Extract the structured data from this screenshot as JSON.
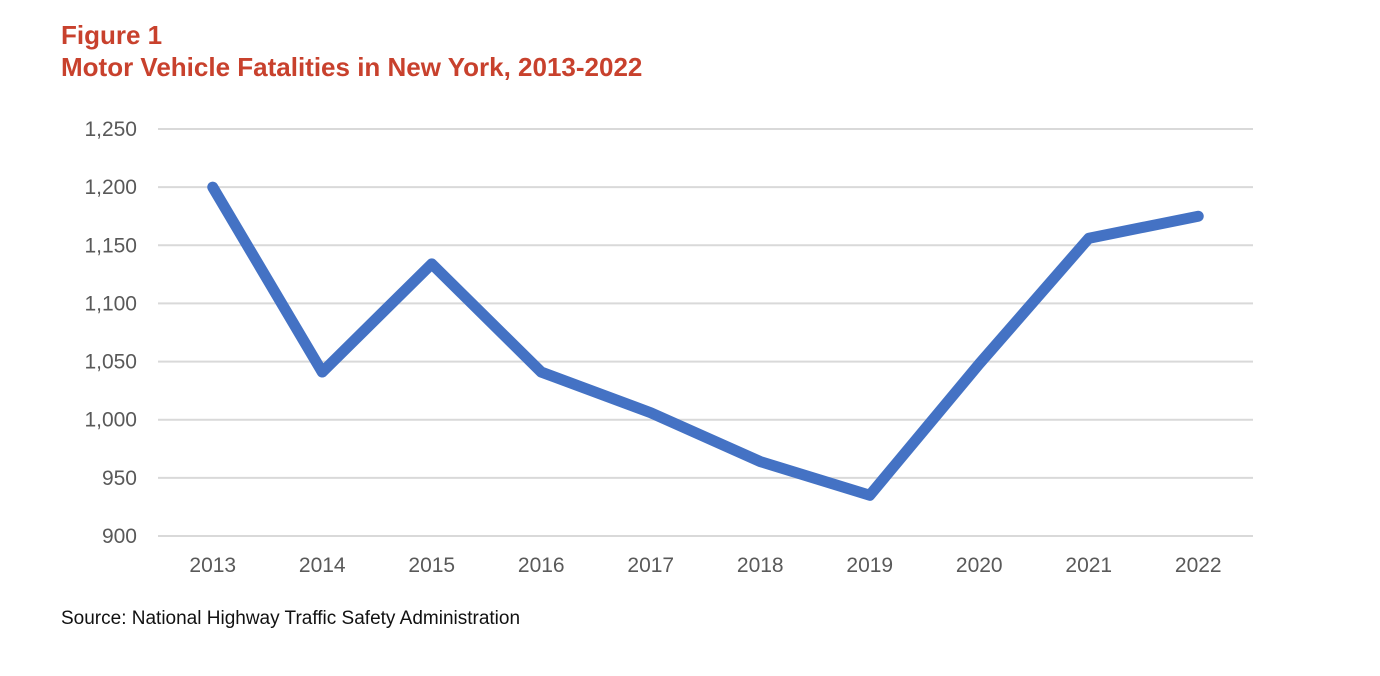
{
  "figure_label": "Figure 1",
  "source": "Source:  National Highway Traffic Safety Administration",
  "colors": {
    "title": "#C8412D",
    "line": "#4472C4",
    "grid": "#D9D9D9",
    "tick": "#595959"
  },
  "chart_data": {
    "type": "line",
    "title": "Motor Vehicle Fatalities in New York, 2013-2022",
    "xlabel": "",
    "ylabel": "",
    "categories": [
      "2013",
      "2014",
      "2015",
      "2016",
      "2017",
      "2018",
      "2019",
      "2020",
      "2021",
      "2022"
    ],
    "series": [
      {
        "name": "Motor Vehicle Fatalities",
        "values": [
          1200,
          1041,
          1134,
          1041,
          1006,
          964,
          935,
          1048,
          1156,
          1175
        ]
      }
    ],
    "ylim": [
      900,
      1250
    ],
    "yticks": [
      900,
      950,
      1000,
      1050,
      1100,
      1150,
      1200,
      1250
    ],
    "ytick_labels": [
      "900",
      "950",
      "1,000",
      "1,050",
      "1,100",
      "1,150",
      "1,200",
      "1,250"
    ],
    "grid": true,
    "legend": "none"
  }
}
